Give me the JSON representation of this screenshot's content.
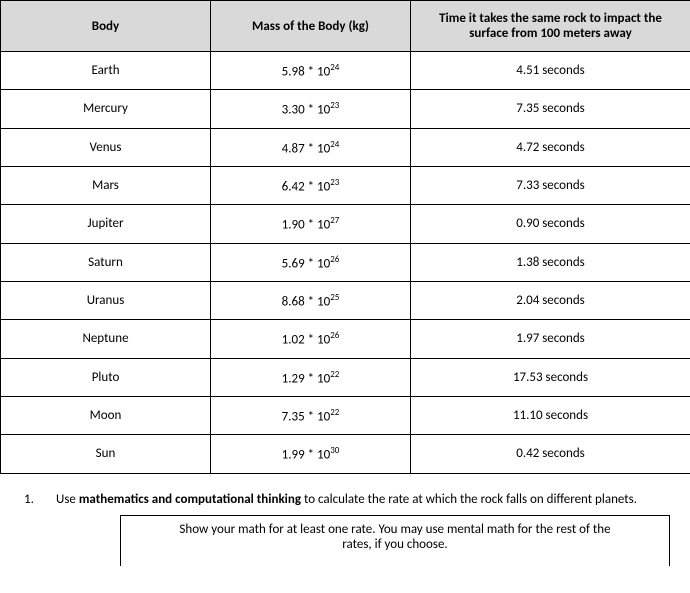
{
  "table": {
    "headers": {
      "body": "Body",
      "mass": "Mass of the Body  (kg)",
      "time": "Time it takes the same rock to impact the surface from 100 meters away"
    },
    "rows": [
      {
        "body": "Earth",
        "mass_coeff": "5.98",
        "mass_exp": "24",
        "time": "4.51 seconds"
      },
      {
        "body": "Mercury",
        "mass_coeff": "3.30",
        "mass_exp": "23",
        "time": "7.35 seconds"
      },
      {
        "body": "Venus",
        "mass_coeff": "4.87",
        "mass_exp": "24",
        "time": "4.72 seconds"
      },
      {
        "body": "Mars",
        "mass_coeff": "6.42",
        "mass_exp": "23",
        "time": "7.33 seconds"
      },
      {
        "body": "Jupiter",
        "mass_coeff": "1.90",
        "mass_exp": "27",
        "time": "0.90 seconds"
      },
      {
        "body": "Saturn",
        "mass_coeff": "5.69",
        "mass_exp": "26",
        "time": "1.38 seconds"
      },
      {
        "body": "Uranus",
        "mass_coeff": "8.68",
        "mass_exp": "25",
        "time": "2.04 seconds"
      },
      {
        "body": "Neptune",
        "mass_coeff": "1.02",
        "mass_exp": "26",
        "time": "1.97 seconds"
      },
      {
        "body": "Pluto",
        "mass_coeff": "1.29",
        "mass_exp": "22",
        "time": "17.53 seconds"
      },
      {
        "body": "Moon",
        "mass_coeff": "7.35",
        "mass_exp": "22",
        "time": "11.10 seconds"
      },
      {
        "body": "Sun",
        "mass_coeff": "1.99",
        "mass_exp": "30",
        "time": "0.42 seconds"
      }
    ],
    "header_bg": "#d9d9d9",
    "border_color": "#000000",
    "mass_star": " * 10"
  },
  "question": {
    "number": "1.",
    "text_pre": "Use ",
    "text_bold": "mathematics and computational thinking",
    "text_post": " to calculate the rate at which the rock falls on different planets.",
    "box_line1": "Show your math for at least one rate. You may use mental math for the rest of the",
    "box_line2": "rates, if you choose."
  }
}
